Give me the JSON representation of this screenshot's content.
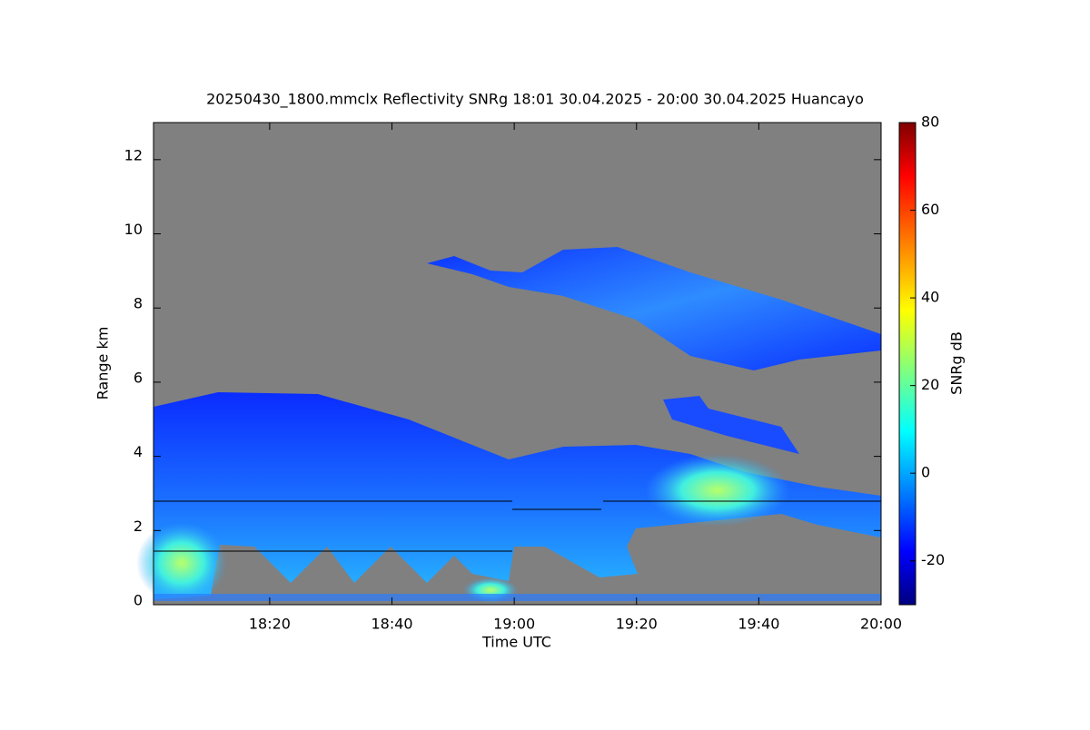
{
  "chart_data": {
    "type": "heatmap",
    "title": "20250430_1800.mmclx Reflectivity SNRg   18:01 30.04.2025 - 20:00 30.04.2025 Huancayo",
    "x_label": "Time UTC",
    "y_label": "Range km",
    "xlim": [
      1,
      120
    ],
    "xticks": [
      {
        "value": 20,
        "label": "18:20"
      },
      {
        "value": 40,
        "label": "18:40"
      },
      {
        "value": 60,
        "label": "19:00"
      },
      {
        "value": 80,
        "label": "19:20"
      },
      {
        "value": 100,
        "label": "19:40"
      },
      {
        "value": 120,
        "label": "20:00"
      }
    ],
    "ylim": [
      0,
      13
    ],
    "yticks": [
      0,
      2,
      4,
      6,
      8,
      10,
      12
    ],
    "colorbar": {
      "label": "SNRg dB",
      "colormap": "jet",
      "lim": [
        -30,
        80
      ],
      "ticks": [
        -20,
        0,
        20,
        40,
        60,
        80
      ]
    },
    "background": "#808080"
  }
}
